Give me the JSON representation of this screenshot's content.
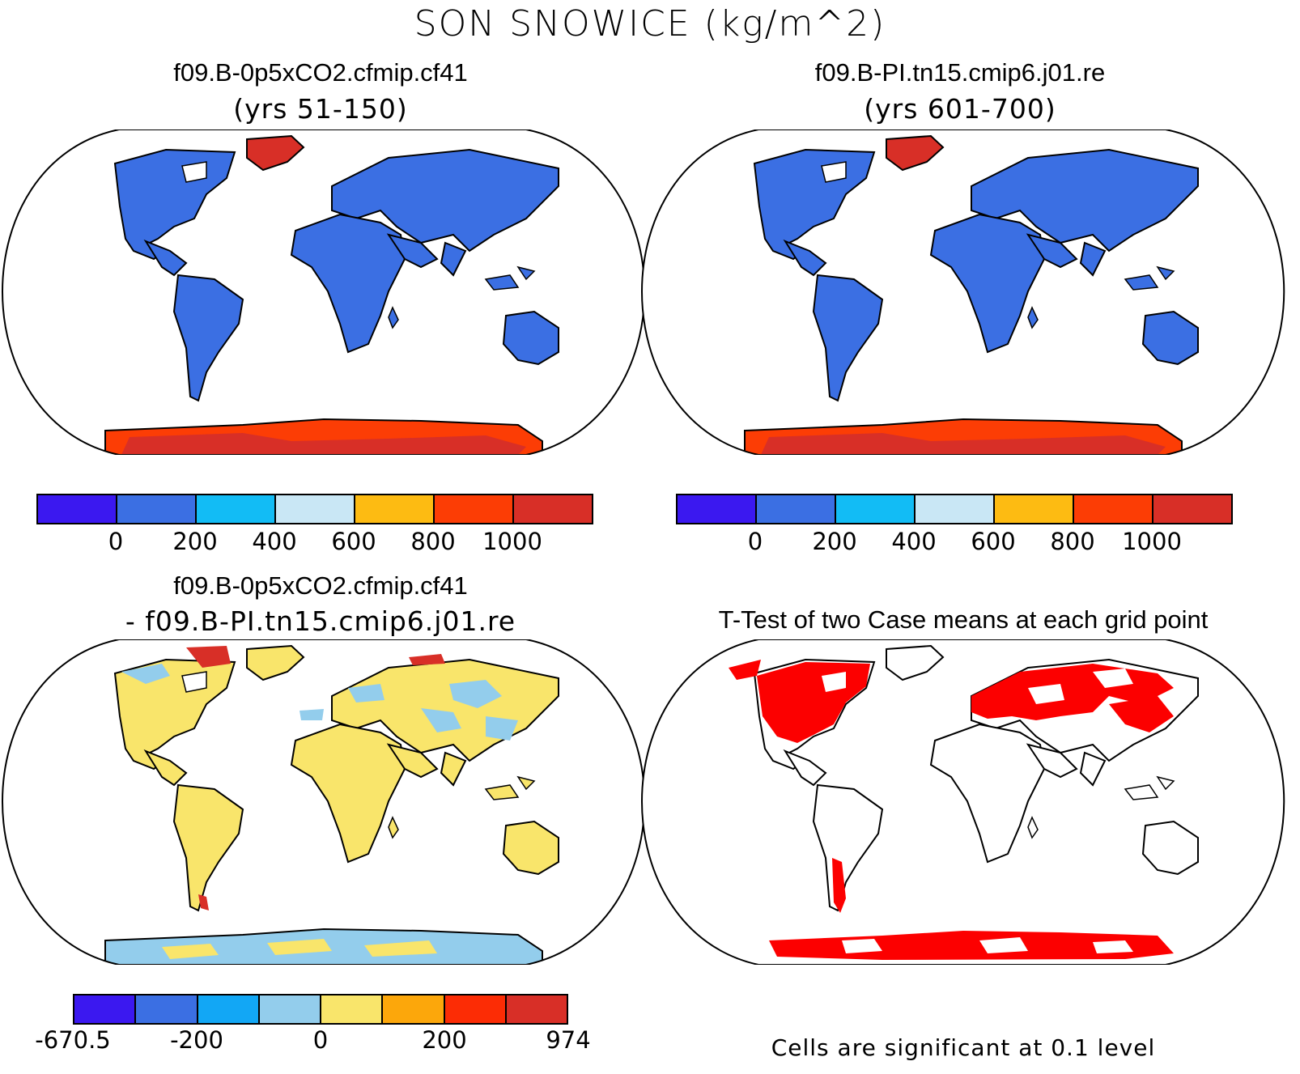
{
  "title": "SON SNOWICE (kg/m^2)",
  "panels": {
    "top_left": {
      "title": "f09.B-0p5xCO2.cfmip.cf41",
      "subtitle": "(yrs 51-150)"
    },
    "top_right": {
      "title": "f09.B-PI.tn15.cmip6.j01.re",
      "subtitle": "(yrs 601-700)"
    },
    "bottom_left": {
      "title": "f09.B-0p5xCO2.cfmip.cf41",
      "subtitle": "- f09.B-PI.tn15.cmip6.j01.re"
    },
    "bottom_right": {
      "title": "T-Test of two Case means at each grid point",
      "note": "Cells are significant at 0.1 level"
    }
  },
  "colorbars": {
    "fields": {
      "colors": [
        "#3b18f0",
        "#3b6fe3",
        "#12bcf5",
        "#c9e7f5",
        "#fdbb12",
        "#fc3d05",
        "#d82f27"
      ],
      "labels": [
        "0",
        "200",
        "400",
        "600",
        "800",
        "1000"
      ]
    },
    "difference": {
      "colors": [
        "#3b18f0",
        "#3b6fe3",
        "#12a7f5",
        "#93cdec",
        "#f9e56b",
        "#fca70b",
        "#fc2c05",
        "#d82f27"
      ],
      "labels": [
        "-670.5",
        "-200",
        "0",
        "200",
        "974"
      ]
    }
  },
  "map_colors": {
    "land_field": "#3b6fe3",
    "ice_high": "#d82f27",
    "ice_orange": "#fc3d05",
    "diff_land": "#f9e56b",
    "diff_neg": "#93cdec",
    "diff_pos": "#d82f27",
    "significant": "#fc0000"
  }
}
